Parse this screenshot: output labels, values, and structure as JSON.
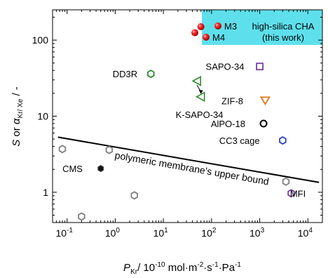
{
  "chart_data": {
    "type": "scatter",
    "xscale": "log",
    "yscale": "log",
    "xlim": [
      0.05,
      20000
    ],
    "ylim": [
      0.4,
      250
    ],
    "x_ticks": [
      {
        "value": 0.1,
        "base": "10",
        "exp": "-1"
      },
      {
        "value": 1,
        "base": "10",
        "exp": "0"
      },
      {
        "value": 10,
        "base": "10",
        "exp": "1"
      },
      {
        "value": 100,
        "base": "10",
        "exp": "2"
      },
      {
        "value": 1000,
        "base": "10",
        "exp": "3"
      },
      {
        "value": 10000,
        "base": "10",
        "exp": "4"
      }
    ],
    "y_ticks": [
      {
        "value": 1,
        "label": "1"
      },
      {
        "value": 10,
        "label": "10"
      },
      {
        "value": 100,
        "label": "100"
      }
    ],
    "xlabel": {
      "p": "P",
      "p_sub": "Kr",
      "rest": "/ 10",
      "exp1": "-10",
      "unit": " mol·m",
      "exp2": "-2",
      "mid": "·s",
      "exp3": "-1",
      "pa": "·Pa",
      "exp4": "-1"
    },
    "ylabel": {
      "s": "S",
      "or": " or ",
      "alpha": "α",
      "sub": "Kr/ Xe",
      "tail": " / -"
    },
    "legend": {
      "box_color": "#5ee0ec",
      "entries": [
        {
          "label": "M3"
        },
        {
          "label": "M4"
        }
      ],
      "text_line1": "high-silica CHA",
      "text_line2": "(this work)"
    },
    "upper_bound": {
      "label": "polymeric membrane's upper bound",
      "points": [
        [
          0.065,
          5.3
        ],
        [
          17000,
          1.35
        ]
      ]
    },
    "colors": {
      "green": "#2e8b2e",
      "purple": "#7b3f9e",
      "orange": "#e07818",
      "blue": "#2a40c0",
      "red": "#e02020",
      "gray": "#808080"
    },
    "points": [
      {
        "label": "M3",
        "x": 60,
        "y": 150,
        "marker": "sphere",
        "color": "#e02020"
      },
      {
        "label": "M4",
        "x": 45,
        "y": 125,
        "marker": "sphere",
        "color": "#e02020"
      },
      {
        "label": "DD3R",
        "x": 5.5,
        "y": 36,
        "marker": "hexagon",
        "color": "#2e8b2e"
      },
      {
        "label": "K-SAPO-34 a",
        "x": 50,
        "y": 29,
        "marker": "triangle-left",
        "color": "#2e8b2e"
      },
      {
        "label": "K-SAPO-34 b",
        "x": 60,
        "y": 18,
        "marker": "triangle-left",
        "color": "#2e8b2e"
      },
      {
        "label": "SAPO-34",
        "x": 1000,
        "y": 45,
        "marker": "square",
        "color": "#7b3f9e"
      },
      {
        "label": "ZIF-8",
        "x": 1300,
        "y": 16,
        "marker": "triangle-down",
        "color": "#e07818"
      },
      {
        "label": "AlPO-18",
        "x": 1200,
        "y": 8,
        "marker": "circle",
        "color": "#000000"
      },
      {
        "label": "CC3 cage",
        "x": 3000,
        "y": 4.8,
        "marker": "hexagon",
        "color": "#2a40c0"
      },
      {
        "label": "MFI",
        "x": 4500,
        "y": 0.97,
        "marker": "hexagon",
        "color": "#7b3f9e"
      },
      {
        "label": "CMS",
        "x": 0.5,
        "y": 2.05,
        "marker": "hexagon-filled",
        "color": "#000000"
      },
      {
        "label": "",
        "x": 0.08,
        "y": 3.7,
        "marker": "hexagon",
        "color": "#808080"
      },
      {
        "label": "",
        "x": 0.75,
        "y": 3.6,
        "marker": "hexagon",
        "color": "#808080"
      },
      {
        "label": "",
        "x": 2.5,
        "y": 0.91,
        "marker": "hexagon",
        "color": "#808080"
      },
      {
        "label": "",
        "x": 0.2,
        "y": 0.48,
        "marker": "hexagon",
        "color": "#808080"
      },
      {
        "label": "",
        "x": 3500,
        "y": 1.38,
        "marker": "hexagon",
        "color": "#808080"
      }
    ],
    "annotations": [
      {
        "text": "DD3R",
        "x": 1.6,
        "y": 36
      },
      {
        "text": "SAPO-34",
        "x": 190,
        "y": 45
      },
      {
        "text": "K-SAPO-34",
        "x": 56,
        "y": 10.5
      },
      {
        "text": "ZIF-8",
        "x": 270,
        "y": 16
      },
      {
        "text": "AlPO-18",
        "x": 220,
        "y": 8
      },
      {
        "text": "CC3 cage",
        "x": 380,
        "y": 4.8
      },
      {
        "text": "CMS",
        "x": 0.13,
        "y": 2.05
      },
      {
        "text": "MFI",
        "x": 6200,
        "y": 0.97
      }
    ]
  }
}
